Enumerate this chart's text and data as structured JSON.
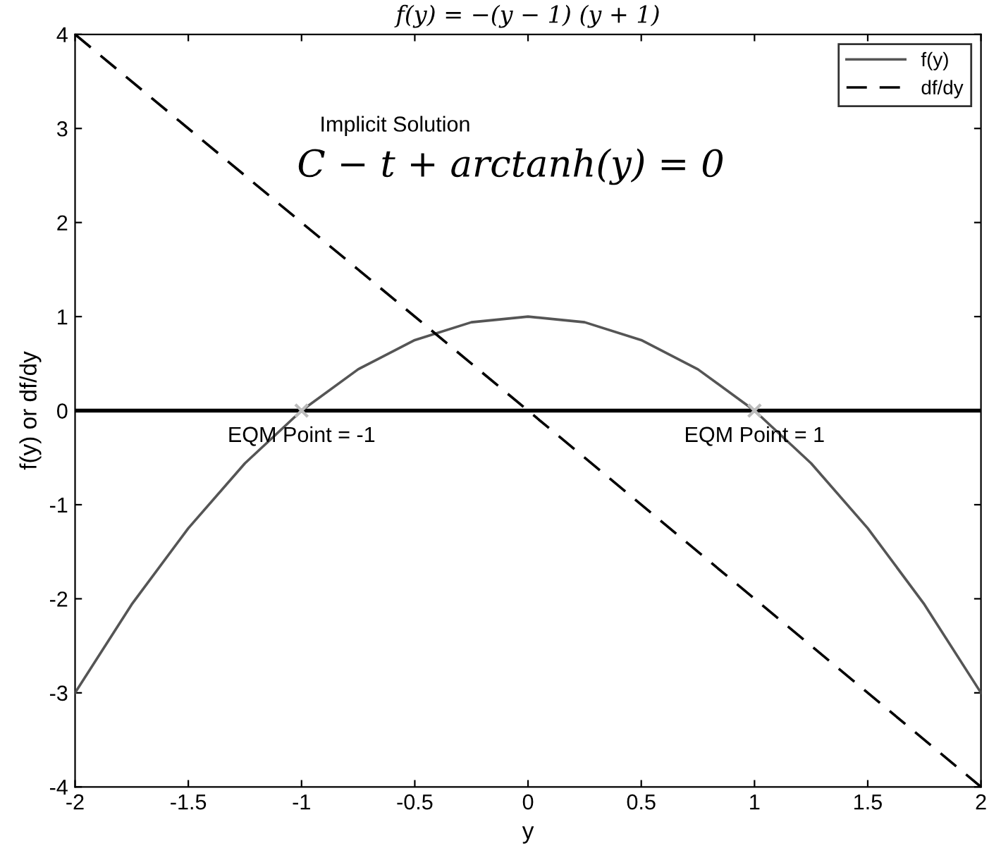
{
  "chart_data": {
    "type": "line",
    "title": "f(y) = −(y − 1) (y + 1)",
    "xlabel": "y",
    "ylabel": "f(y) or df/dy",
    "series": [
      {
        "name": "f(y)",
        "color": "#555555",
        "line_style": "solid",
        "x": [
          -2,
          -1.75,
          -1.5,
          -1.25,
          -1,
          -0.75,
          -0.5,
          -0.25,
          0,
          0.25,
          0.5,
          0.75,
          1,
          1.25,
          1.5,
          1.75,
          2
        ],
        "values": [
          -3,
          -2.06,
          -1.25,
          -0.56,
          0,
          0.44,
          0.75,
          0.94,
          1,
          0.94,
          0.75,
          0.44,
          0,
          -0.56,
          -1.25,
          -2.06,
          -3
        ]
      },
      {
        "name": "df/dy",
        "color": "#000000",
        "line_style": "dashed",
        "x": [
          -2,
          2
        ],
        "values": [
          4,
          -4
        ]
      },
      {
        "type": "scatter",
        "color": "#bbbbbb",
        "marker": "cross",
        "x": [
          -1,
          1
        ],
        "values": [
          0,
          0
        ]
      }
    ],
    "ref_lines": [
      {
        "axis": "y",
        "value": 0,
        "color": "#000000"
      }
    ],
    "annotations": [
      "Implicit Solution",
      "C − t + arctanh(y) = 0",
      {
        "text": "EQM Point = -1",
        "x": -1,
        "y": 0
      },
      {
        "text": "EQM Point = 1",
        "x": 1,
        "y": 0
      }
    ],
    "xlim": [
      -2,
      2
    ],
    "ylim": [
      -4,
      4
    ],
    "xticks": [
      -2,
      -1.5,
      -1,
      -0.5,
      0,
      0.5,
      1,
      1.5,
      2
    ],
    "yticks": [
      -4,
      -3,
      -2,
      -1,
      0,
      1,
      2,
      3,
      4
    ],
    "grid": false,
    "legend": "top right"
  }
}
